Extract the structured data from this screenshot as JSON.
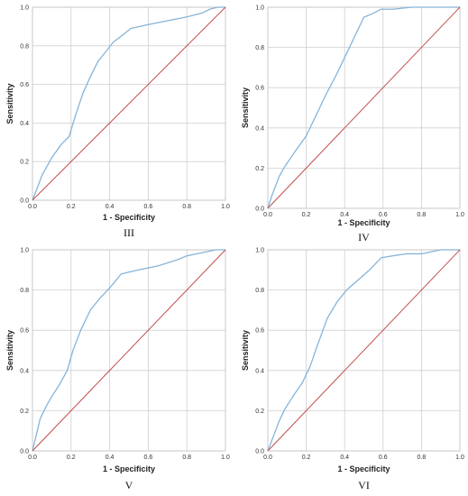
{
  "chart_data": [
    {
      "type": "line",
      "panel_label": "III",
      "xlabel": "1 - Specificity",
      "ylabel": "Sensitivity",
      "xlim": [
        0,
        1
      ],
      "ylim": [
        0,
        1
      ],
      "xticks": [
        "0.0",
        "0.2",
        "0.4",
        "0.6",
        "0.8",
        "1.0"
      ],
      "yticks": [
        "0.0",
        "0.2",
        "0.4",
        "0.6",
        "0.8",
        "1.0"
      ],
      "grid": true,
      "series": [
        {
          "color": "#86b4d8",
          "x": [
            0,
            0.02,
            0.05,
            0.1,
            0.15,
            0.19,
            0.22,
            0.26,
            0.3,
            0.34,
            0.38,
            0.42,
            0.46,
            0.51,
            0.6,
            0.7,
            0.8,
            0.88,
            0.92,
            0.96,
            1.0
          ],
          "y": [
            0,
            0.05,
            0.13,
            0.22,
            0.29,
            0.33,
            0.43,
            0.55,
            0.64,
            0.72,
            0.77,
            0.82,
            0.85,
            0.89,
            0.91,
            0.93,
            0.95,
            0.97,
            0.99,
            1.0,
            1.0
          ]
        },
        {
          "color": "#c0504d",
          "x": [
            0,
            1
          ],
          "y": [
            0,
            1
          ]
        }
      ]
    },
    {
      "type": "line",
      "panel_label": "IV",
      "xlabel": "1 - Specificity",
      "ylabel": "Sensitivity",
      "xlim": [
        0,
        1
      ],
      "ylim": [
        0,
        1
      ],
      "xticks": [
        "0.0",
        "0.2",
        "0.4",
        "0.6",
        "0.8",
        "1.0"
      ],
      "yticks": [
        "0.0",
        "0.2",
        "0.4",
        "0.6",
        "0.8",
        "1.0"
      ],
      "grid": true,
      "series": [
        {
          "color": "#86b4d8",
          "x": [
            0,
            0.02,
            0.04,
            0.06,
            0.09,
            0.14,
            0.2,
            0.24,
            0.3,
            0.36,
            0.41,
            0.46,
            0.5,
            0.55,
            0.59,
            0.65,
            0.75,
            0.85,
            0.95,
            1.0
          ],
          "y": [
            0,
            0.06,
            0.11,
            0.16,
            0.21,
            0.28,
            0.36,
            0.44,
            0.56,
            0.67,
            0.77,
            0.87,
            0.95,
            0.97,
            0.99,
            0.99,
            1.0,
            1.0,
            1.0,
            1.0
          ]
        },
        {
          "color": "#c0504d",
          "x": [
            0,
            1
          ],
          "y": [
            0,
            1
          ]
        }
      ]
    },
    {
      "type": "line",
      "panel_label": "V",
      "xlabel": "1 - Specificity",
      "ylabel": "Sensitivity",
      "xlim": [
        0,
        1
      ],
      "ylim": [
        0,
        1
      ],
      "xticks": [
        "0.0",
        "0.2",
        "0.4",
        "0.6",
        "0.8",
        "1.0"
      ],
      "yticks": [
        "0.0",
        "0.2",
        "0.4",
        "0.6",
        "0.8",
        "1.0"
      ],
      "grid": true,
      "series": [
        {
          "color": "#86b4d8",
          "x": [
            0,
            0.02,
            0.04,
            0.07,
            0.1,
            0.14,
            0.18,
            0.21,
            0.25,
            0.3,
            0.35,
            0.4,
            0.46,
            0.55,
            0.65,
            0.75,
            0.8,
            0.85,
            0.9,
            0.95,
            1.0
          ],
          "y": [
            0,
            0.08,
            0.16,
            0.22,
            0.27,
            0.33,
            0.4,
            0.5,
            0.6,
            0.7,
            0.76,
            0.81,
            0.88,
            0.9,
            0.92,
            0.95,
            0.97,
            0.98,
            0.99,
            1.0,
            1.0
          ]
        },
        {
          "color": "#c0504d",
          "x": [
            0,
            1
          ],
          "y": [
            0,
            1
          ]
        }
      ]
    },
    {
      "type": "line",
      "panel_label": "VI",
      "xlabel": "1 - Specificity",
      "ylabel": "Sensitivity",
      "xlim": [
        0,
        1
      ],
      "ylim": [
        0,
        1
      ],
      "xticks": [
        "0.0",
        "0.2",
        "0.4",
        "0.6",
        "0.8",
        "1.0"
      ],
      "yticks": [
        "0.0",
        "0.2",
        "0.4",
        "0.6",
        "0.8",
        "1.0"
      ],
      "grid": true,
      "series": [
        {
          "color": "#86b4d8",
          "x": [
            0,
            0.02,
            0.04,
            0.06,
            0.09,
            0.13,
            0.18,
            0.22,
            0.26,
            0.31,
            0.36,
            0.41,
            0.47,
            0.53,
            0.59,
            0.65,
            0.72,
            0.8,
            0.85,
            0.9,
            0.95,
            1.0
          ],
          "y": [
            0,
            0.05,
            0.1,
            0.15,
            0.21,
            0.27,
            0.34,
            0.42,
            0.53,
            0.66,
            0.74,
            0.8,
            0.85,
            0.9,
            0.96,
            0.97,
            0.98,
            0.98,
            0.99,
            1.0,
            1.0,
            1.0
          ]
        },
        {
          "color": "#c0504d",
          "x": [
            0,
            1
          ],
          "y": [
            0,
            1
          ]
        }
      ]
    }
  ]
}
